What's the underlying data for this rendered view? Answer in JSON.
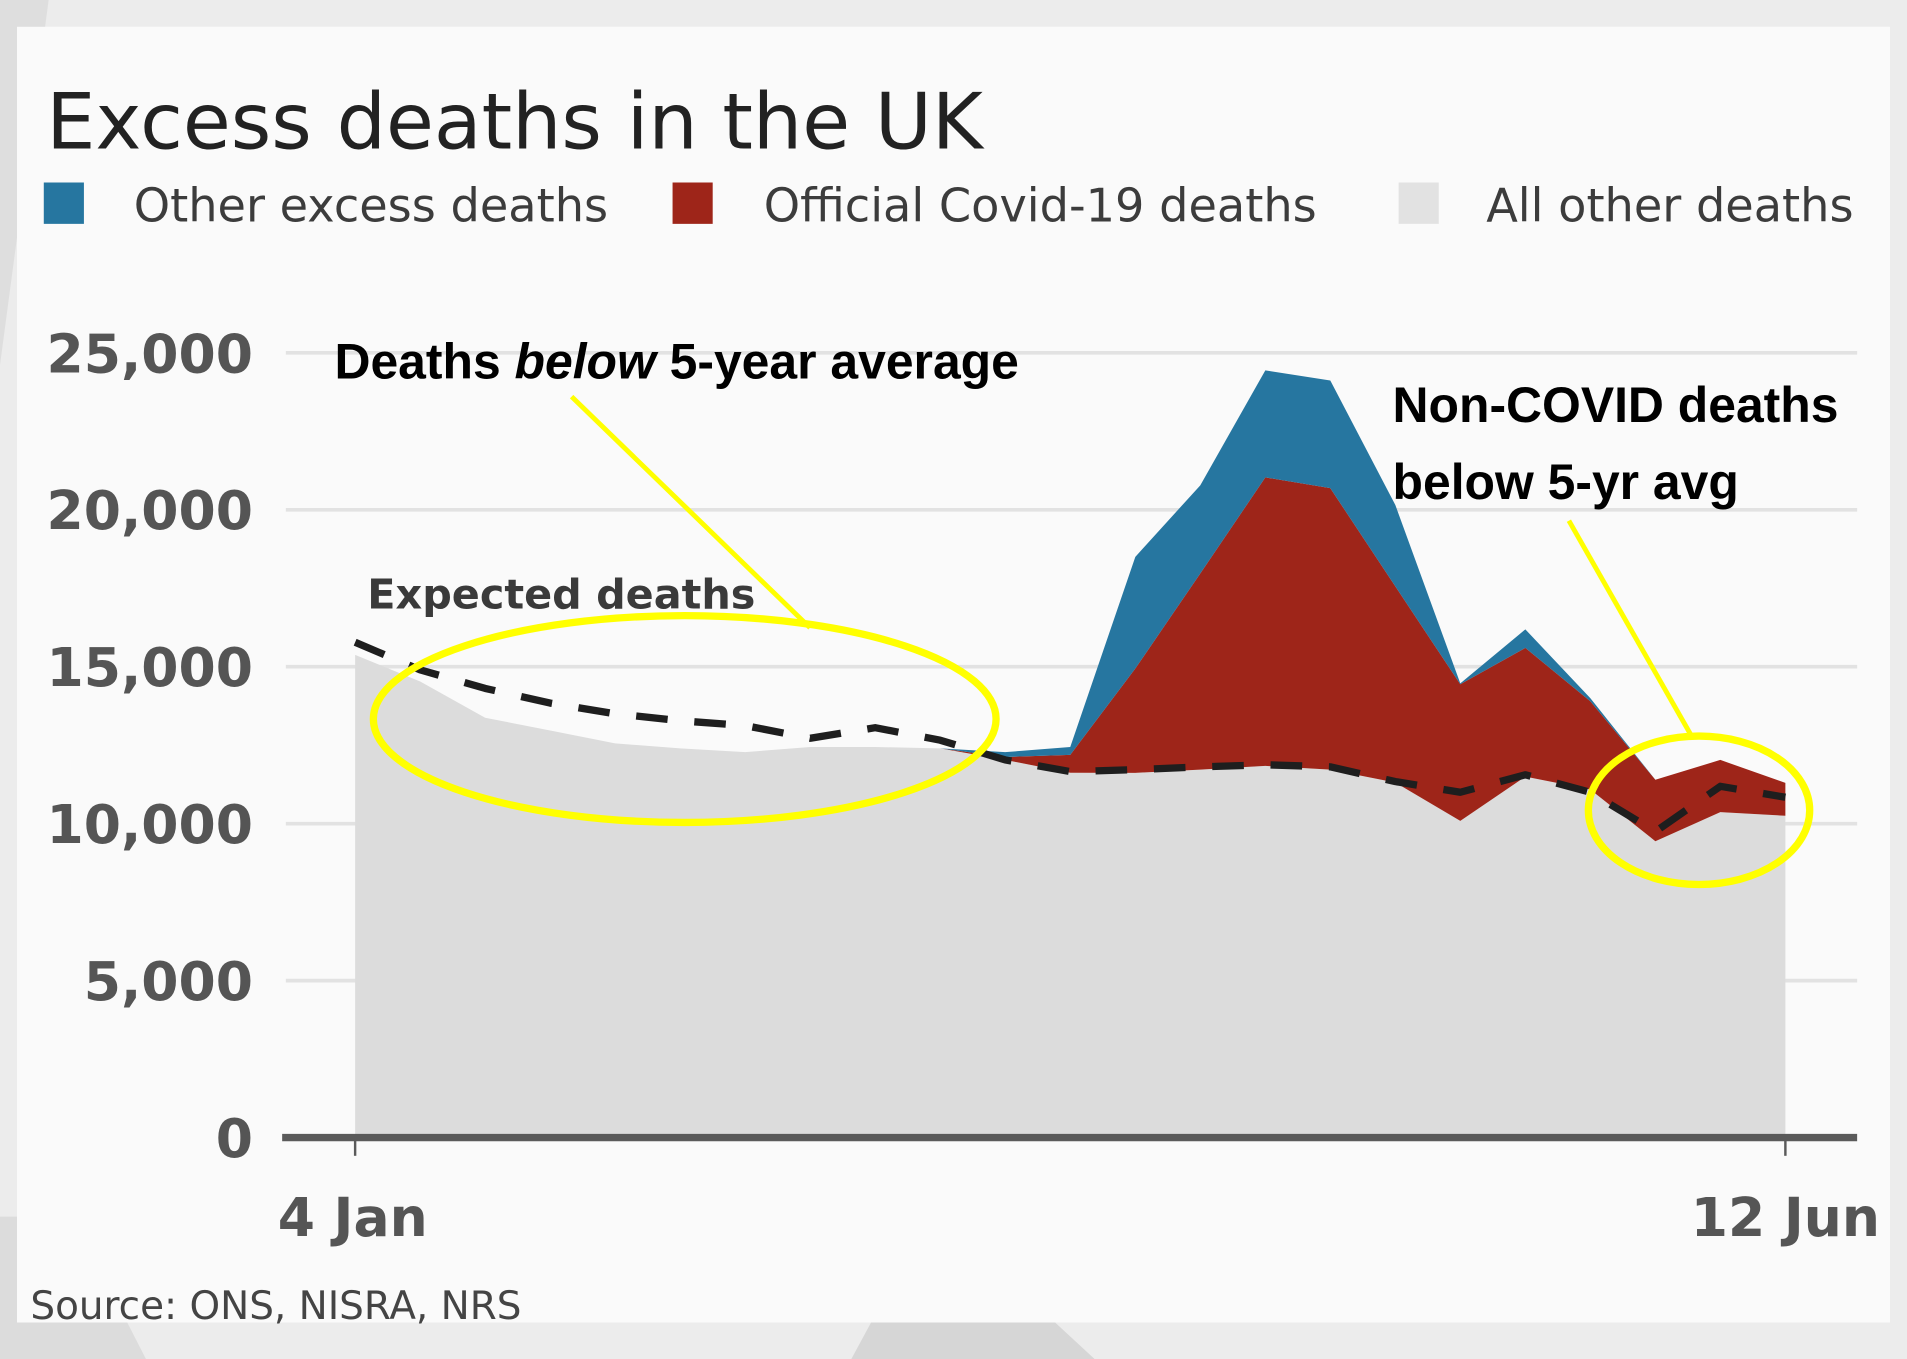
{
  "chart_data": {
    "type": "area",
    "stacked": true,
    "title": "Excess deaths in the UK",
    "xlabel": "",
    "ylabel": "",
    "ylim": [
      0,
      25000
    ],
    "yticks": [
      0,
      5000,
      10000,
      15000,
      20000,
      25000
    ],
    "ytick_labels": [
      "0",
      "5,000",
      "10,000",
      "15,000",
      "20,000",
      "25,000"
    ],
    "x_tick_labels": [
      {
        "index": 0,
        "label": "4 Jan"
      },
      {
        "index": 22,
        "label": "12 Jun"
      }
    ],
    "x_weeks": 23,
    "grid": true,
    "legend_position": "top",
    "series": [
      {
        "name": "All other deaths",
        "color": "#dcdcdc",
        "values": [
          15375,
          14530,
          13375,
          12970,
          12560,
          12400,
          12280,
          12440,
          12440,
          12400,
          12030,
          11625,
          11620,
          11720,
          11840,
          11720,
          11310,
          10090,
          11500,
          11090,
          9440,
          10370,
          10250
        ]
      },
      {
        "name": "Official Covid-19 deaths",
        "color": "#9e2519",
        "values": [
          0,
          0,
          0,
          0,
          0,
          0,
          0,
          0,
          0,
          0,
          95,
          565,
          3320,
          6250,
          9190,
          8970,
          6250,
          4350,
          4100,
          2810,
          1960,
          1660,
          1050
        ]
      },
      {
        "name": "Other excess deaths",
        "color": "#2676a0",
        "values": [
          0,
          0,
          0,
          0,
          0,
          0,
          0,
          0,
          0,
          0,
          155,
          250,
          3560,
          2810,
          3410,
          3430,
          2590,
          30,
          590,
          100,
          0,
          0,
          0
        ]
      }
    ],
    "expected_deaths": {
      "name": "Expected deaths",
      "style": "dashed",
      "color": "#222222",
      "values": [
        15780,
        14900,
        14310,
        13840,
        13500,
        13280,
        13125,
        12720,
        13060,
        12660,
        12030,
        11660,
        11720,
        11810,
        11875,
        11810,
        11340,
        11000,
        11560,
        11000,
        9750,
        11190,
        10840
      ]
    },
    "annotations": [
      {
        "text_parts": [
          "Deaths ",
          "below",
          " 5-year average"
        ],
        "italic_part": 1,
        "target": "weeks 0-9 (expected above actual)",
        "shape": "ellipse",
        "color": "#ffff00"
      },
      {
        "text_lines": [
          "Non-COVID deaths",
          "below 5-yr avg"
        ],
        "target": "weeks 20-22",
        "shape": "ellipse",
        "color": "#ffff00"
      }
    ],
    "source": "Source: ONS, NISRA, NRS"
  },
  "header": {
    "title": "Excess deaths in the UK"
  },
  "legend": [
    {
      "label": "Other excess deaths",
      "color": "#2676a0"
    },
    {
      "label": "Official Covid-19 deaths",
      "color": "#9e2519"
    },
    {
      "label": "All other deaths",
      "color": "#e0e0e0"
    }
  ],
  "axis": {
    "y_labels": [
      "25,000",
      "20,000",
      "15,000",
      "10,000",
      "5,000",
      "0"
    ],
    "x_start": "4 Jan",
    "x_end": "12 Jun"
  },
  "labels": {
    "expected": "Expected deaths",
    "source": "Source: ONS, NISRA, NRS"
  },
  "annotations": {
    "left": {
      "pre": "Deaths ",
      "em": "below",
      "post": " 5-year average"
    },
    "right": {
      "line1": "Non-COVID deaths",
      "line2": "below 5-yr avg"
    },
    "color": "#ffff00"
  }
}
